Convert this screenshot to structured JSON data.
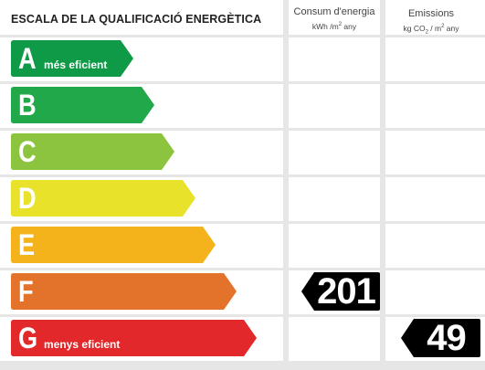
{
  "header": {
    "title": "ESCALA DE LA QUALIFICACIÓ ENERGÈTICA",
    "consumption": {
      "label": "Consum d'energia",
      "unit_main": "kWh /m",
      "unit_sup": "2",
      "unit_tail": " any"
    },
    "emissions": {
      "label": "Emissions",
      "unit_main": "kg CO",
      "unit_sub": "2",
      "unit_mid": " / m",
      "unit_sup": "2",
      "unit_tail": " any"
    }
  },
  "bands": [
    {
      "letter": "A",
      "desc": "més eficient",
      "color": "#0f9a48"
    },
    {
      "letter": "B",
      "desc": "",
      "color": "#21a84a"
    },
    {
      "letter": "C",
      "desc": "",
      "color": "#8cc43f"
    },
    {
      "letter": "D",
      "desc": "",
      "color": "#e8e32a"
    },
    {
      "letter": "E",
      "desc": "",
      "color": "#f4b21b"
    },
    {
      "letter": "F",
      "desc": "",
      "color": "#e3722a"
    },
    {
      "letter": "G",
      "desc": "menys eficient",
      "color": "#e2282a"
    }
  ],
  "ratings": {
    "consumption": {
      "value": "201",
      "band": "F"
    },
    "emissions": {
      "value": "49",
      "band": "G"
    }
  }
}
